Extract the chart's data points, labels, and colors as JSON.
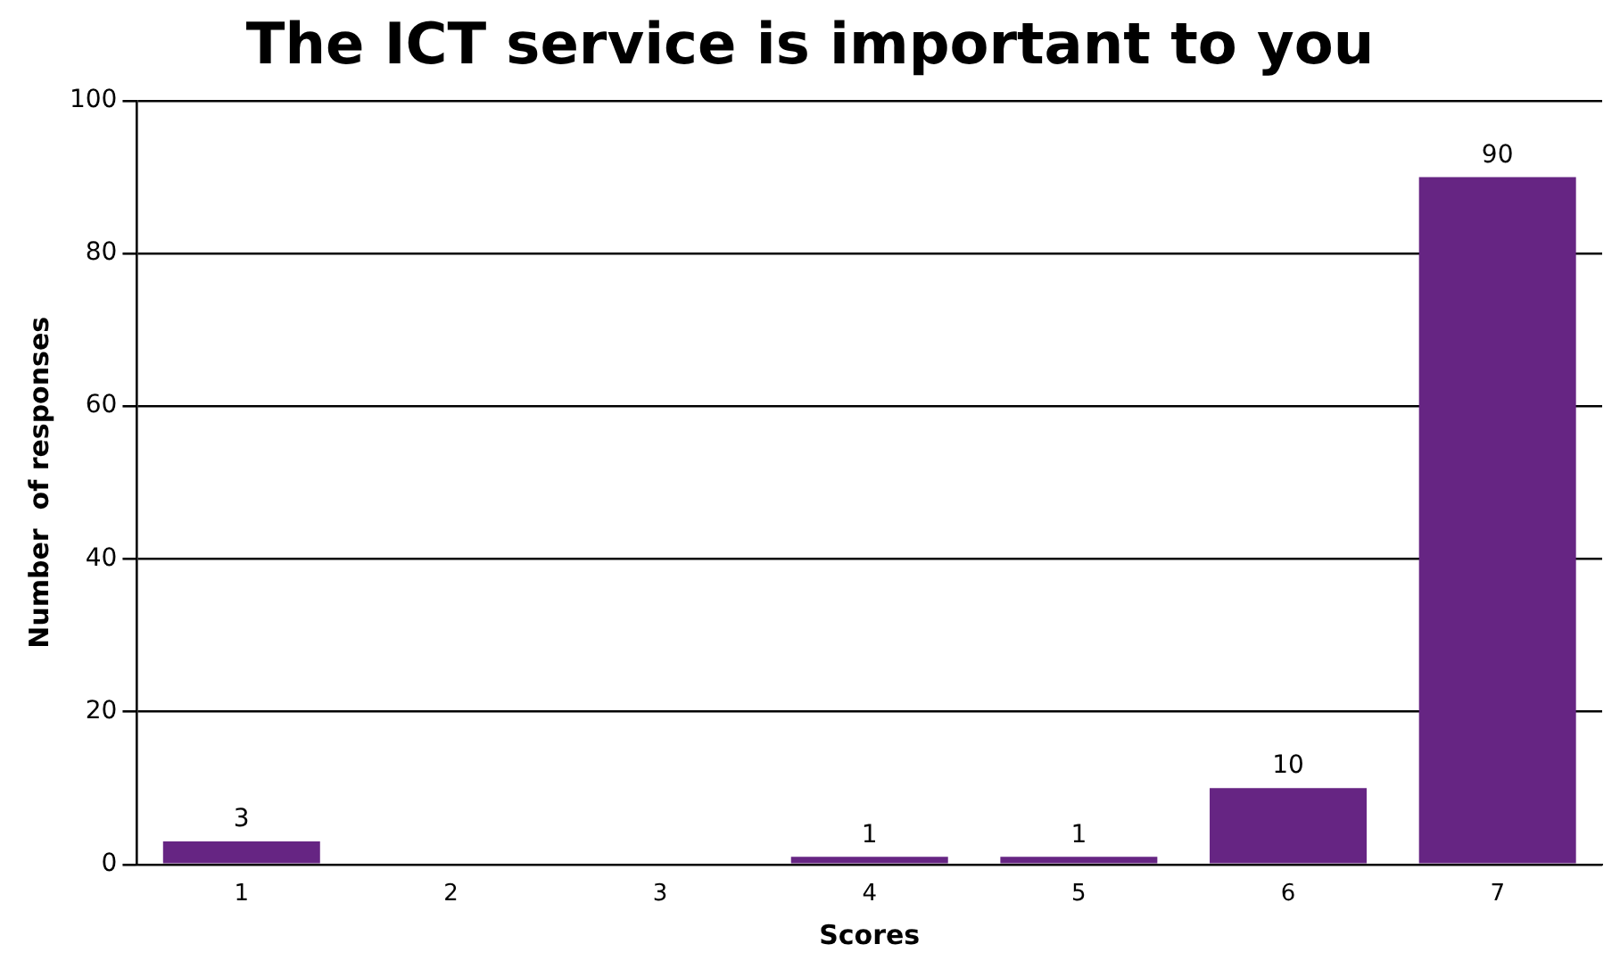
{
  "chart_data": {
    "type": "bar",
    "title": "The ICT service is important to you",
    "xlabel": "Scores",
    "ylabel": "Number  of responses",
    "categories": [
      "1",
      "2",
      "3",
      "4",
      "5",
      "6",
      "7"
    ],
    "values": [
      3,
      0,
      0,
      1,
      1,
      10,
      90
    ],
    "color": "#662583",
    "value_labels": [
      "3",
      null,
      null,
      "1",
      "1",
      "10",
      "90"
    ],
    "ylim": [
      0,
      100
    ],
    "yticks": [
      0,
      20,
      40,
      60,
      80,
      100
    ],
    "grid": "y",
    "legend": false
  }
}
